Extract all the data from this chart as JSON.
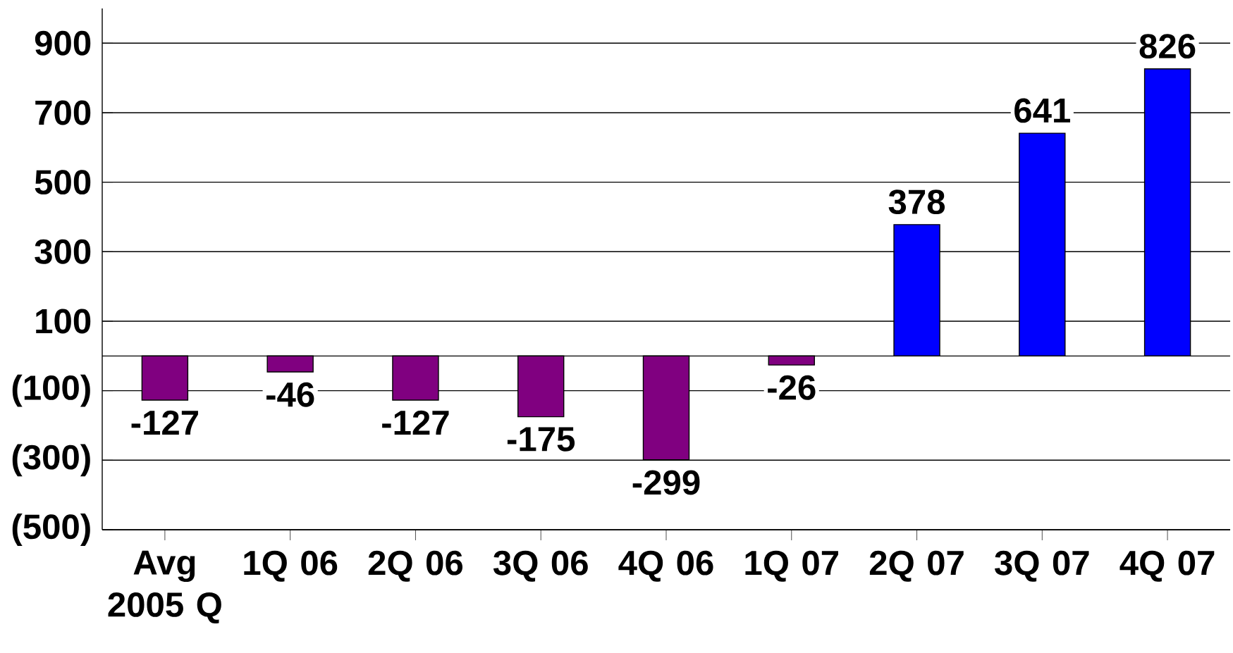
{
  "chart_data": {
    "type": "bar",
    "categories": [
      "Avg 2005 Q",
      "1Q 06",
      "2Q 06",
      "3Q 06",
      "4Q 06",
      "1Q 07",
      "2Q 07",
      "3Q 07",
      "4Q 07"
    ],
    "values": [
      -127,
      -46,
      -127,
      -175,
      -299,
      -26,
      378,
      641,
      826
    ],
    "colors": [
      "#800080",
      "#800080",
      "#800080",
      "#800080",
      "#800080",
      "#800080",
      "#0000ff",
      "#0000ff",
      "#0000ff"
    ],
    "ylim": [
      -500,
      1000
    ],
    "yticks": [
      {
        "value": -500,
        "label": "(500)"
      },
      {
        "value": -300,
        "label": "(300)"
      },
      {
        "value": -100,
        "label": "(100)"
      },
      100,
      300,
      500,
      700,
      900
    ],
    "grid": "y",
    "data_labels": true
  }
}
